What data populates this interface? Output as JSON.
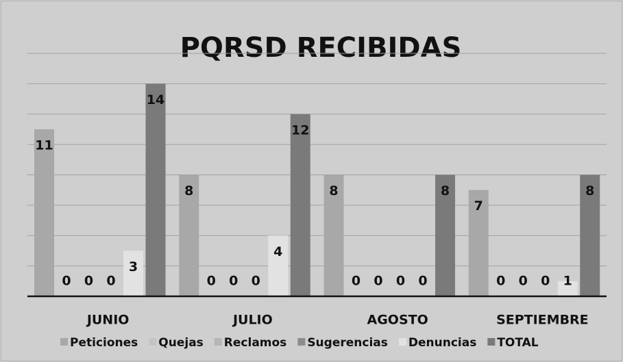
{
  "chart_data": {
    "type": "bar",
    "title": "PQRSD RECIBIDAS",
    "categories": [
      "JUNIO",
      "JULIO",
      "AGOSTO",
      "SEPTIEMBRE"
    ],
    "series": [
      {
        "name": "Peticiones",
        "color": "#a8a8a8",
        "values": [
          11,
          8,
          8,
          7
        ]
      },
      {
        "name": "Quejas",
        "color": "#c4c4c4",
        "values": [
          0,
          0,
          0,
          0
        ]
      },
      {
        "name": "Reclamos",
        "color": "#b6b6b6",
        "values": [
          0,
          0,
          0,
          0
        ]
      },
      {
        "name": "Sugerencias",
        "color": "#8c8c8c",
        "values": [
          0,
          0,
          0,
          0
        ]
      },
      {
        "name": "Denuncias",
        "color": "#e2e2e2",
        "values": [
          3,
          4,
          0,
          1
        ]
      },
      {
        "name": "TOTAL",
        "color": "#7a7a7a",
        "values": [
          14,
          12,
          8,
          8
        ]
      }
    ],
    "ylim": [
      0,
      16
    ],
    "yticks": [
      0,
      2,
      4,
      6,
      8,
      10,
      12,
      14,
      16
    ],
    "grid": true,
    "legend": "bottom"
  }
}
